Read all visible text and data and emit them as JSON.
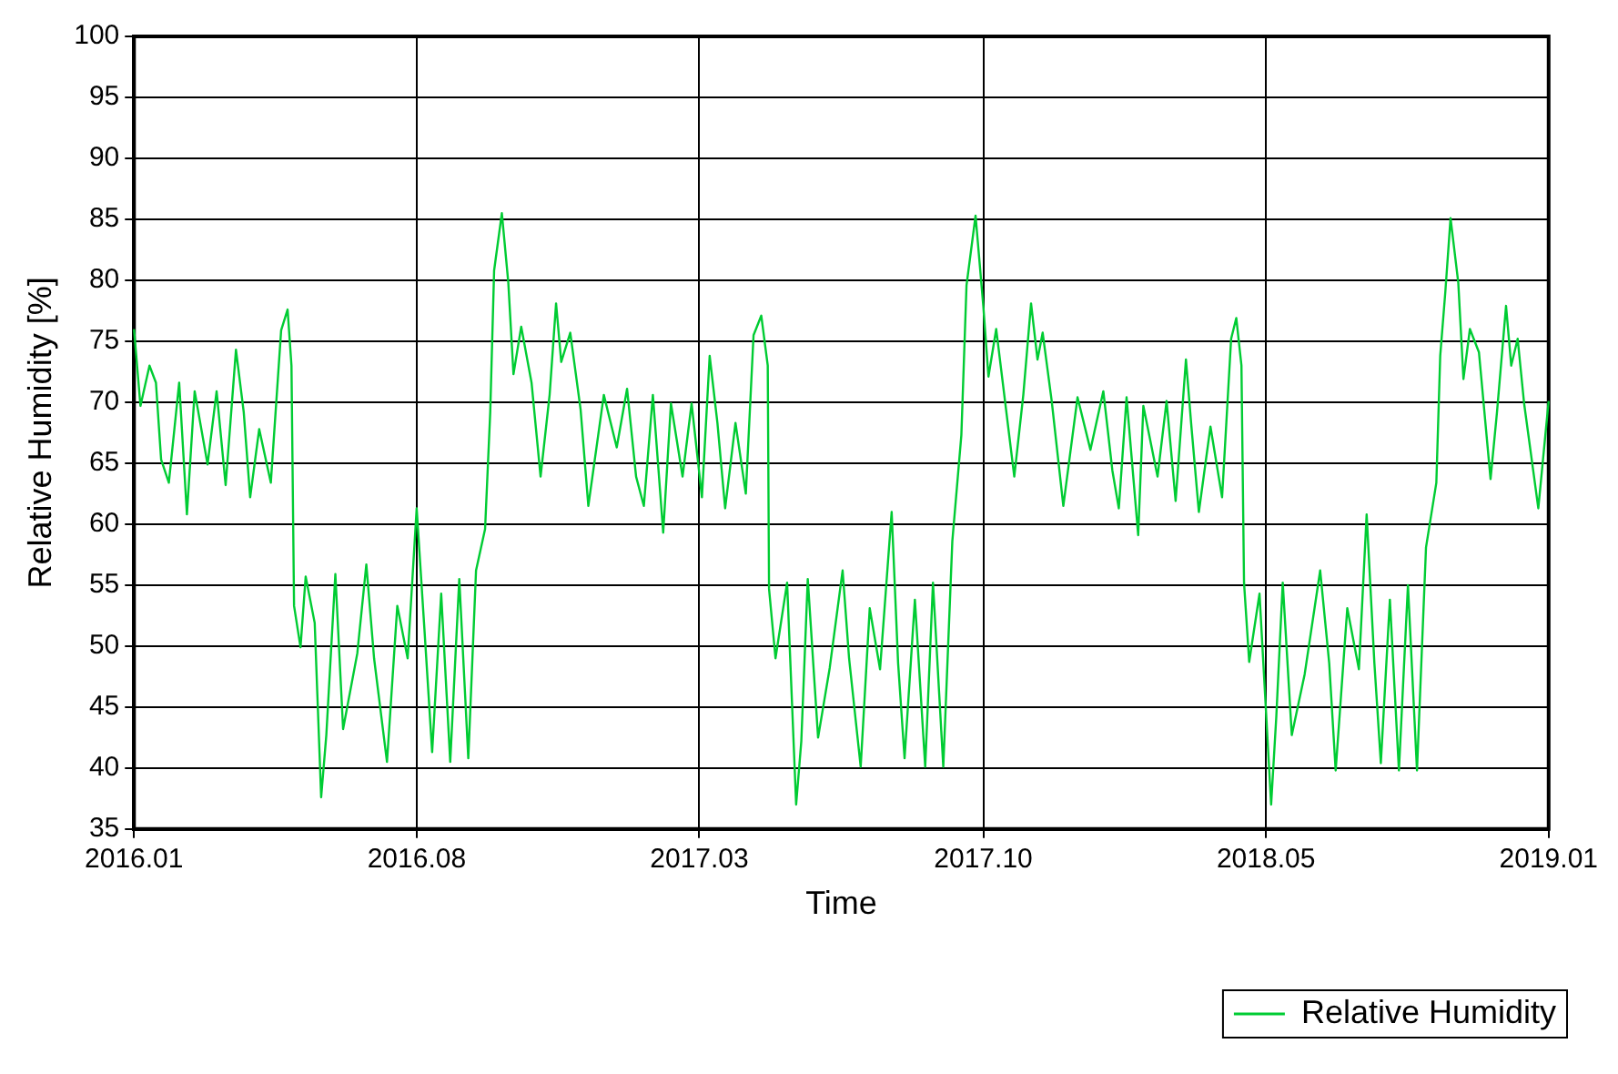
{
  "chart_data": {
    "type": "line",
    "xlabel": "Time",
    "ylabel": "Relative Humidity [%]",
    "xlim": [
      "2016-01-01",
      "2019-01-01"
    ],
    "ylim": [
      35,
      100
    ],
    "xticks": [
      {
        "value": "2016-01-01",
        "label": "2016.01"
      },
      {
        "value": "2016-08-07",
        "label": "2016.08"
      },
      {
        "value": "2017-03-14",
        "label": "2017.03"
      },
      {
        "value": "2017-10-20",
        "label": "2017.10"
      },
      {
        "value": "2018-05-27",
        "label": "2018.05"
      },
      {
        "value": "2019-01-01",
        "label": "2019.01"
      }
    ],
    "yticks": [
      35,
      40,
      45,
      50,
      55,
      60,
      65,
      70,
      75,
      80,
      85,
      90,
      95,
      100
    ],
    "grid": true,
    "legend": "bottom right",
    "marker": "none",
    "line_style": "solid",
    "x": [
      "2016-01-01",
      "2016-01-06",
      "2016-01-13",
      "2016-01-18",
      "2016-01-22",
      "2016-01-28",
      "2016-02-05",
      "2016-02-11",
      "2016-02-17",
      "2016-02-27",
      "2016-03-05",
      "2016-03-12",
      "2016-03-20",
      "2016-03-26",
      "2016-03-31",
      "2016-04-07",
      "2016-04-16",
      "2016-04-24",
      "2016-04-29",
      "2016-05-02",
      "2016-05-04",
      "2016-05-09",
      "2016-05-13",
      "2016-05-20",
      "2016-05-25",
      "2016-05-29",
      "2016-06-05",
      "2016-06-11",
      "2016-06-22",
      "2016-06-29",
      "2016-07-05",
      "2016-07-15",
      "2016-07-23",
      "2016-07-31",
      "2016-08-07",
      "2016-08-13",
      "2016-08-19",
      "2016-08-26",
      "2016-09-02",
      "2016-09-09",
      "2016-09-16",
      "2016-09-22",
      "2016-09-29",
      "2016-10-03",
      "2016-10-06",
      "2016-10-12",
      "2016-10-17",
      "2016-10-21",
      "2016-10-27",
      "2016-11-04",
      "2016-11-11",
      "2016-11-18",
      "2016-11-23",
      "2016-11-27",
      "2016-12-04",
      "2016-12-12",
      "2016-12-18",
      "2016-12-30",
      "2017-01-09",
      "2017-01-17",
      "2017-01-24",
      "2017-01-30",
      "2017-02-06",
      "2017-02-14",
      "2017-02-20",
      "2017-03-01",
      "2017-03-08",
      "2017-03-16",
      "2017-03-22",
      "2017-03-28",
      "2017-04-03",
      "2017-04-11",
      "2017-04-19",
      "2017-04-25",
      "2017-05-01",
      "2017-05-06",
      "2017-05-07",
      "2017-05-12",
      "2017-05-21",
      "2017-05-28",
      "2017-06-01",
      "2017-06-06",
      "2017-06-14",
      "2017-06-23",
      "2017-07-03",
      "2017-07-08",
      "2017-07-17",
      "2017-07-24",
      "2017-08-01",
      "2017-08-10",
      "2017-08-15",
      "2017-08-20",
      "2017-08-28",
      "2017-09-05",
      "2017-09-11",
      "2017-09-19",
      "2017-09-26",
      "2017-10-03",
      "2017-10-07",
      "2017-10-14",
      "2017-10-20",
      "2017-10-24",
      "2017-10-30",
      "2017-11-13",
      "2017-11-20",
      "2017-11-26",
      "2017-12-01",
      "2017-12-05",
      "2017-12-12",
      "2017-12-21",
      "2018-01-01",
      "2018-01-11",
      "2018-01-21",
      "2018-01-28",
      "2018-02-02",
      "2018-02-08",
      "2018-02-17",
      "2018-02-21",
      "2018-03-04",
      "2018-03-11",
      "2018-03-18",
      "2018-03-26",
      "2018-03-30",
      "2018-04-05",
      "2018-04-14",
      "2018-04-23",
      "2018-04-30",
      "2018-05-04",
      "2018-05-08",
      "2018-05-10",
      "2018-05-14",
      "2018-05-22",
      "2018-05-31",
      "2018-06-04",
      "2018-06-09",
      "2018-06-16",
      "2018-06-26",
      "2018-07-08",
      "2018-07-15",
      "2018-07-20",
      "2018-07-29",
      "2018-08-07",
      "2018-08-13",
      "2018-08-19",
      "2018-08-24",
      "2018-08-31",
      "2018-09-07",
      "2018-09-14",
      "2018-09-21",
      "2018-09-28",
      "2018-10-06",
      "2018-10-09",
      "2018-10-13",
      "2018-10-17",
      "2018-10-23",
      "2018-10-27",
      "2018-11-01",
      "2018-11-08",
      "2018-11-17",
      "2018-11-22",
      "2018-11-29",
      "2018-12-03",
      "2018-12-08",
      "2018-12-13",
      "2018-12-24",
      "2019-01-01"
    ],
    "series": [
      {
        "name": "Relative Humidity",
        "color": "#00cc33",
        "values": [
          76,
          69.7,
          73,
          71.6,
          65.3,
          63.4,
          71.6,
          60.8,
          70.9,
          64.9,
          70.9,
          63.2,
          74.3,
          69.2,
          62.2,
          67.8,
          63.4,
          75.9,
          77.6,
          73,
          53.3,
          49.9,
          55.7,
          51.9,
          37.6,
          42.7,
          55.9,
          43.2,
          49.4,
          56.7,
          49,
          40.5,
          53.3,
          49,
          61.3,
          51.4,
          41.3,
          54.3,
          40.5,
          55.5,
          40.8,
          56.2,
          59.6,
          69.2,
          80.8,
          85.5,
          79.8,
          72.3,
          76.2,
          71.6,
          63.9,
          70.6,
          78.1,
          73.3,
          75.7,
          69.4,
          61.5,
          70.6,
          66.3,
          71.1,
          63.9,
          61.5,
          70.6,
          59.3,
          69.9,
          63.9,
          69.9,
          62.2,
          73.8,
          68.3,
          61.3,
          68.3,
          62.5,
          75.5,
          77.1,
          73,
          54.7,
          49,
          55.2,
          37,
          42.2,
          55.5,
          42.5,
          48.2,
          56.2,
          49,
          40.1,
          53.1,
          48.1,
          61,
          48.6,
          40.8,
          53.8,
          40.1,
          55.2,
          40.1,
          58.6,
          67.3,
          79.6,
          85.3,
          77.9,
          72.1,
          76,
          63.9,
          70.6,
          78.1,
          73.5,
          75.7,
          70.1,
          61.5,
          70.4,
          66.1,
          70.9,
          64.4,
          61.3,
          70.4,
          59.1,
          69.7,
          63.9,
          70.1,
          61.9,
          73.5,
          68.3,
          61,
          68,
          62.2,
          75.2,
          76.9,
          73,
          55.2,
          48.7,
          54.3,
          37,
          44.2,
          55.2,
          42.7,
          47.7,
          56.2,
          48.6,
          39.8,
          53.1,
          48.1,
          60.8,
          48.6,
          40.4,
          53.8,
          39.8,
          55,
          39.8,
          58.1,
          63.4,
          73.8,
          79.1,
          85.1,
          79.8,
          71.9,
          76,
          74.1,
          63.7,
          69.2,
          77.9,
          73,
          75.2,
          69.9,
          61.3,
          70.1
        ]
      }
    ]
  }
}
